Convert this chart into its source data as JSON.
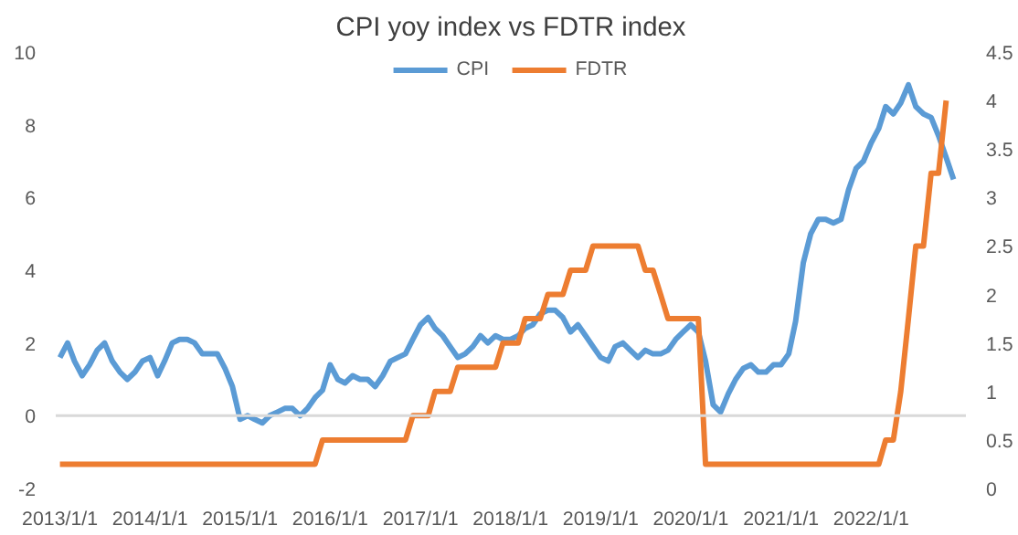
{
  "chart_data": {
    "type": "line",
    "title": "CPI yoy index vs FDTR index",
    "x": [
      "2013-01",
      "2013-02",
      "2013-03",
      "2013-04",
      "2013-05",
      "2013-06",
      "2013-07",
      "2013-08",
      "2013-09",
      "2013-10",
      "2013-11",
      "2013-12",
      "2014-01",
      "2014-02",
      "2014-03",
      "2014-04",
      "2014-05",
      "2014-06",
      "2014-07",
      "2014-08",
      "2014-09",
      "2014-10",
      "2014-11",
      "2014-12",
      "2015-01",
      "2015-02",
      "2015-03",
      "2015-04",
      "2015-05",
      "2015-06",
      "2015-07",
      "2015-08",
      "2015-09",
      "2015-10",
      "2015-11",
      "2015-12",
      "2016-01",
      "2016-02",
      "2016-03",
      "2016-04",
      "2016-05",
      "2016-06",
      "2016-07",
      "2016-08",
      "2016-09",
      "2016-10",
      "2016-11",
      "2016-12",
      "2017-01",
      "2017-02",
      "2017-03",
      "2017-04",
      "2017-05",
      "2017-06",
      "2017-07",
      "2017-08",
      "2017-09",
      "2017-10",
      "2017-11",
      "2017-12",
      "2018-01",
      "2018-02",
      "2018-03",
      "2018-04",
      "2018-05",
      "2018-06",
      "2018-07",
      "2018-08",
      "2018-09",
      "2018-10",
      "2018-11",
      "2018-12",
      "2019-01",
      "2019-02",
      "2019-03",
      "2019-04",
      "2019-05",
      "2019-06",
      "2019-07",
      "2019-08",
      "2019-09",
      "2019-10",
      "2019-11",
      "2019-12",
      "2020-01",
      "2020-02",
      "2020-03",
      "2020-04",
      "2020-05",
      "2020-06",
      "2020-07",
      "2020-08",
      "2020-09",
      "2020-10",
      "2020-11",
      "2020-12",
      "2021-01",
      "2021-02",
      "2021-03",
      "2021-04",
      "2021-05",
      "2021-06",
      "2021-07",
      "2021-08",
      "2021-09",
      "2021-10",
      "2021-11",
      "2021-12",
      "2022-01",
      "2022-02",
      "2022-03",
      "2022-04",
      "2022-05",
      "2022-06",
      "2022-07",
      "2022-08",
      "2022-09",
      "2022-10",
      "2022-11",
      "2022-12"
    ],
    "series": [
      {
        "name": "CPI",
        "color": "#5b9bd5",
        "values": [
          1.6,
          2.0,
          1.5,
          1.1,
          1.4,
          1.8,
          2.0,
          1.5,
          1.2,
          1.0,
          1.2,
          1.5,
          1.6,
          1.1,
          1.5,
          2.0,
          2.1,
          2.1,
          2.0,
          1.7,
          1.7,
          1.7,
          1.3,
          0.8,
          -0.1,
          0.0,
          -0.1,
          -0.2,
          0.0,
          0.1,
          0.2,
          0.2,
          0.0,
          0.2,
          0.5,
          0.7,
          1.4,
          1.0,
          0.9,
          1.1,
          1.0,
          1.0,
          0.8,
          1.1,
          1.5,
          1.6,
          1.7,
          2.1,
          2.5,
          2.7,
          2.4,
          2.2,
          1.9,
          1.6,
          1.7,
          1.9,
          2.2,
          2.0,
          2.2,
          2.1,
          2.1,
          2.2,
          2.4,
          2.5,
          2.8,
          2.9,
          2.9,
          2.7,
          2.3,
          2.5,
          2.2,
          1.9,
          1.6,
          1.5,
          1.9,
          2.0,
          1.8,
          1.6,
          1.8,
          1.7,
          1.7,
          1.8,
          2.1,
          2.3,
          2.5,
          2.3,
          1.5,
          0.3,
          0.1,
          0.6,
          1.0,
          1.3,
          1.4,
          1.2,
          1.2,
          1.4,
          1.4,
          1.7,
          2.6,
          4.2,
          5.0,
          5.4,
          5.4,
          5.3,
          5.4,
          6.2,
          6.8,
          7.0,
          7.5,
          7.9,
          8.5,
          8.3,
          8.6,
          9.1,
          8.5,
          8.3,
          8.2,
          7.7,
          7.1,
          6.5
        ]
      },
      {
        "name": "FDTR",
        "color": "#ed7d31",
        "axis": "y2",
        "values": [
          0.25,
          0.25,
          0.25,
          0.25,
          0.25,
          0.25,
          0.25,
          0.25,
          0.25,
          0.25,
          0.25,
          0.25,
          0.25,
          0.25,
          0.25,
          0.25,
          0.25,
          0.25,
          0.25,
          0.25,
          0.25,
          0.25,
          0.25,
          0.25,
          0.25,
          0.25,
          0.25,
          0.25,
          0.25,
          0.25,
          0.25,
          0.25,
          0.25,
          0.25,
          0.25,
          0.5,
          0.5,
          0.5,
          0.5,
          0.5,
          0.5,
          0.5,
          0.5,
          0.5,
          0.5,
          0.5,
          0.5,
          0.75,
          0.75,
          0.75,
          1.0,
          1.0,
          1.0,
          1.25,
          1.25,
          1.25,
          1.25,
          1.25,
          1.25,
          1.5,
          1.5,
          1.5,
          1.75,
          1.75,
          1.75,
          2.0,
          2.0,
          2.0,
          2.25,
          2.25,
          2.25,
          2.5,
          2.5,
          2.5,
          2.5,
          2.5,
          2.5,
          2.5,
          2.25,
          2.25,
          2.0,
          1.75,
          1.75,
          1.75,
          1.75,
          1.75,
          0.25,
          0.25,
          0.25,
          0.25,
          0.25,
          0.25,
          0.25,
          0.25,
          0.25,
          0.25,
          0.25,
          0.25,
          0.25,
          0.25,
          0.25,
          0.25,
          0.25,
          0.25,
          0.25,
          0.25,
          0.25,
          0.25,
          0.25,
          0.25,
          0.5,
          0.5,
          1.0,
          1.75,
          2.5,
          2.5,
          3.25,
          3.25,
          4.0,
          null
        ]
      }
    ],
    "xlim": [
      "2012-12-15",
      "2023-01-20"
    ],
    "xticks": [
      {
        "value": "2013-01",
        "label": "2013/1/1"
      },
      {
        "value": "2014-01",
        "label": "2014/1/1"
      },
      {
        "value": "2015-01",
        "label": "2015/1/1"
      },
      {
        "value": "2016-01",
        "label": "2016/1/1"
      },
      {
        "value": "2017-01",
        "label": "2017/1/1"
      },
      {
        "value": "2018-01",
        "label": "2018/1/1"
      },
      {
        "value": "2019-01",
        "label": "2019/1/1"
      },
      {
        "value": "2020-01",
        "label": "2020/1/1"
      },
      {
        "value": "2021-01",
        "label": "2021/1/1"
      },
      {
        "value": "2022-01",
        "label": "2022/1/1"
      }
    ],
    "ylim": [
      -2,
      10
    ],
    "yticks": [
      -2,
      0,
      2,
      4,
      6,
      8,
      10
    ],
    "y2lim": [
      0,
      4.5
    ],
    "y2ticks": [
      0,
      0.5,
      1,
      1.5,
      2,
      2.5,
      3,
      3.5,
      4,
      4.5
    ],
    "ref_lines": [
      {
        "axis": "y",
        "value": 0,
        "color": "#d9d9d9"
      }
    ],
    "legend": "top",
    "grid": false,
    "line_style": "solid",
    "marker": "none"
  }
}
